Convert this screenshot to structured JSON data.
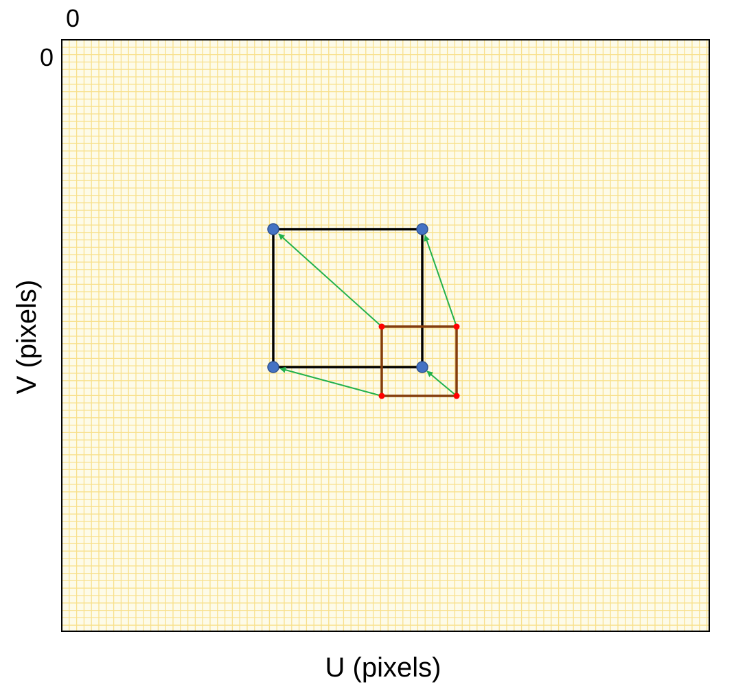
{
  "labels": {
    "origin_u": "0",
    "origin_v": "0",
    "x_axis": "U (pixels)",
    "y_axis": "V (pixels)"
  },
  "colors": {
    "background": "#fdfbe9",
    "grid": "#f8e08c",
    "frame": "#000000",
    "large_square": "#000000",
    "large_square_points": "#4472c4",
    "small_square": "#843c0c",
    "small_square_points": "#ff0000",
    "arrows": "#22b14c"
  }
}
